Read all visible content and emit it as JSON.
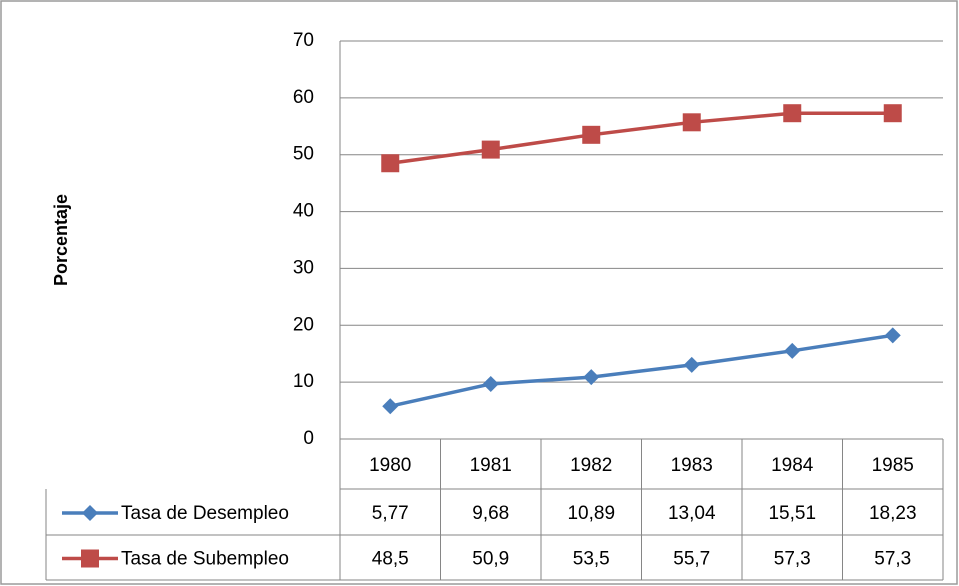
{
  "chart_data": {
    "type": "line",
    "y_label": "Porcentaje",
    "categories": [
      "1980",
      "1981",
      "1982",
      "1983",
      "1984",
      "1985"
    ],
    "series": [
      {
        "name": "Tasa de Desempleo",
        "color": "#4a7ebb",
        "marker": "diamond",
        "values": [
          5.77,
          9.68,
          10.89,
          13.04,
          15.51,
          18.23
        ],
        "value_labels": [
          "5,77",
          "9,68",
          "10,89",
          "13,04",
          "15,51",
          "18,23"
        ]
      },
      {
        "name": "Tasa de Subempleo",
        "color": "#be4b48",
        "marker": "square",
        "values": [
          48.5,
          50.9,
          53.5,
          55.7,
          57.3,
          57.3
        ],
        "value_labels": [
          "48,5",
          "50,9",
          "53,5",
          "55,7",
          "57,3",
          "57,3"
        ]
      }
    ],
    "ylim": [
      0,
      70
    ],
    "yticks": [
      0,
      10,
      20,
      30,
      40,
      50,
      60,
      70
    ],
    "grid": true,
    "data_table": true
  }
}
